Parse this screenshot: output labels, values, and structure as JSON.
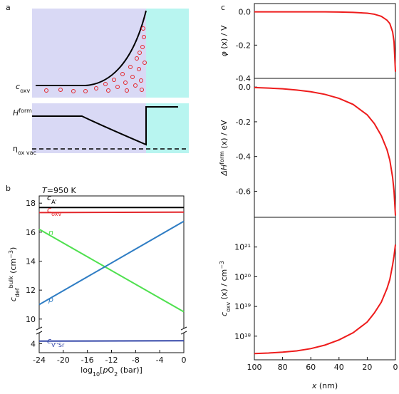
{
  "panels": [
    "a",
    "b",
    "c"
  ],
  "schematic": {
    "concentration_label": [
      {
        "text": "c",
        "style": "italic"
      },
      {
        "text": "oxv",
        "style": "sub"
      }
    ],
    "energy_label": [
      {
        "text": "H",
        "style": "italic"
      },
      {
        "text": "form",
        "style": "sup"
      }
    ],
    "level_label": [
      {
        "text": "η",
        "style": "normal"
      },
      {
        "text": "ox vac",
        "style": "sub"
      }
    ]
  },
  "chart_data": [
    {
      "type": "line",
      "panel": "b",
      "annotation": [
        {
          "text": "T",
          "style": "italic"
        },
        {
          "text": "=950 K",
          "style": "normal"
        }
      ],
      "xlabel": [
        {
          "text": "log",
          "style": "normal"
        },
        {
          "text": "10",
          "style": "sub"
        },
        {
          "text": "[",
          "style": "normal"
        },
        {
          "text": "p",
          "style": "italic"
        },
        {
          "text": "O",
          "style": "normal"
        },
        {
          "text": "2",
          "style": "sub"
        },
        {
          "text": " (bar)]",
          "style": "normal"
        }
      ],
      "ylabel": [
        {
          "text": "c",
          "style": "italic"
        },
        {
          "text": "def",
          "style": "sub"
        },
        {
          "text": "bulk",
          "style": "sup"
        },
        {
          "text": " (cm",
          "style": "normal"
        },
        {
          "text": "−3",
          "style": "sup"
        },
        {
          "text": ")",
          "style": "normal"
        }
      ],
      "xlim": [
        -24,
        0
      ],
      "xticks": [
        -24,
        -20,
        -16,
        -12,
        -8,
        -4,
        0
      ],
      "ylim": [
        9.5,
        18.5
      ],
      "yticks": [
        10,
        12,
        14,
        16,
        18
      ],
      "y2lim": [
        3.5,
        4.5
      ],
      "y2ticks": [
        4
      ],
      "series": [
        {
          "name": [
            {
              "text": "c",
              "style": "italic"
            },
            {
              "text": "A'",
              "style": "sub"
            }
          ],
          "color": "#000000",
          "x": [
            -24,
            0
          ],
          "values": [
            17.7,
            17.7
          ]
        },
        {
          "name": [
            {
              "text": "c",
              "style": "italic"
            },
            {
              "text": "oxv",
              "style": "sub"
            }
          ],
          "color": "#e3262b",
          "x": [
            -24,
            0
          ],
          "values": [
            17.35,
            17.38
          ]
        },
        {
          "name": [
            {
              "text": "n",
              "style": "italic"
            }
          ],
          "color": "#4fe04f",
          "x": [
            -24,
            0
          ],
          "values": [
            16.2,
            10.5
          ]
        },
        {
          "name": [
            {
              "text": "p",
              "style": "italic"
            }
          ],
          "color": "#2f7dc4",
          "x": [
            -24,
            0
          ],
          "values": [
            11.0,
            16.75
          ]
        },
        {
          "name": [
            {
              "text": "c",
              "style": "italic"
            },
            {
              "text": "V''Sr",
              "style": "sub"
            }
          ],
          "color": "#3346a8",
          "axis": "y2",
          "x": [
            -24,
            0
          ],
          "values": [
            4.15,
            4.17
          ]
        }
      ]
    },
    {
      "type": "line",
      "panel": "c",
      "ylabel": [
        {
          "text": "φ",
          "style": "italic"
        },
        {
          "text": " (x) / V",
          "style": "normal"
        }
      ],
      "xlim": [
        100,
        0
      ],
      "ylim": [
        -0.4,
        0.05
      ],
      "yticks": [
        {
          "value": 0,
          "label": "0.0"
        },
        -0.2,
        -0.4
      ],
      "series": [
        {
          "color": "#ee1c1c",
          "x": [
            100,
            90,
            80,
            70,
            60,
            50,
            40,
            30,
            20,
            15,
            10,
            6,
            4,
            2,
            1,
            0
          ],
          "values": [
            0,
            0,
            0,
            0,
            0,
            0,
            -0.001,
            -0.003,
            -0.008,
            -0.014,
            -0.027,
            -0.05,
            -0.07,
            -0.12,
            -0.18,
            -0.36
          ]
        }
      ]
    },
    {
      "type": "line",
      "panel": "c",
      "ylabel": [
        {
          "text": "ΔH",
          "style": "italic"
        },
        {
          "text": "form",
          "style": "sup"
        },
        {
          "text": " (x) / eV",
          "style": "normal"
        }
      ],
      "xlim": [
        100,
        0
      ],
      "ylim": [
        -0.75,
        0.05
      ],
      "yticks": [
        {
          "value": 0,
          "label": "0.0"
        },
        -0.2,
        -0.4,
        -0.6
      ],
      "series": [
        {
          "color": "#ee1c1c",
          "x": [
            100,
            90,
            80,
            70,
            60,
            50,
            40,
            30,
            20,
            15,
            10,
            6,
            4,
            2,
            1,
            0
          ],
          "values": [
            -0.003,
            -0.006,
            -0.01,
            -0.017,
            -0.027,
            -0.042,
            -0.065,
            -0.1,
            -0.16,
            -0.21,
            -0.28,
            -0.36,
            -0.42,
            -0.52,
            -0.6,
            -0.74
          ]
        }
      ]
    },
    {
      "type": "line",
      "panel": "c",
      "log": true,
      "ylabel": [
        {
          "text": "c",
          "style": "italic"
        },
        {
          "text": "oxv",
          "style": "sub"
        },
        {
          "text": " (x) / cm",
          "style": "normal"
        },
        {
          "text": "−3",
          "style": "sup"
        }
      ],
      "xlabel": [
        {
          "text": "x",
          "style": "italic"
        },
        {
          "text": " (nm)",
          "style": "normal"
        }
      ],
      "xlim": [
        100,
        0
      ],
      "xticks": [
        100,
        80,
        60,
        40,
        20,
        0
      ],
      "ylim": [
        1.6e+17,
        1e+22
      ],
      "yticks": [
        {
          "value": 1e+18,
          "label": "10¹⁸"
        },
        {
          "value": 1e+19,
          "label": "10¹⁹"
        },
        {
          "value": 1e+20,
          "label": "10²⁰"
        },
        {
          "value": 1e+21,
          "label": "10²¹"
        }
      ],
      "series": [
        {
          "color": "#ee1c1c",
          "x": [
            100,
            90,
            80,
            70,
            60,
            50,
            40,
            30,
            20,
            15,
            10,
            6,
            4,
            2,
            1,
            0
          ],
          "values": [
            2.6e+17,
            2.7e+17,
            2.9e+17,
            3.2e+17,
            3.8e+17,
            5e+17,
            7.5e+17,
            1.3e+18,
            3e+18,
            6e+18,
            1.4e+19,
            4e+19,
            8e+19,
            2.5e+20,
            5e+20,
            1.2e+21
          ]
        }
      ]
    }
  ]
}
